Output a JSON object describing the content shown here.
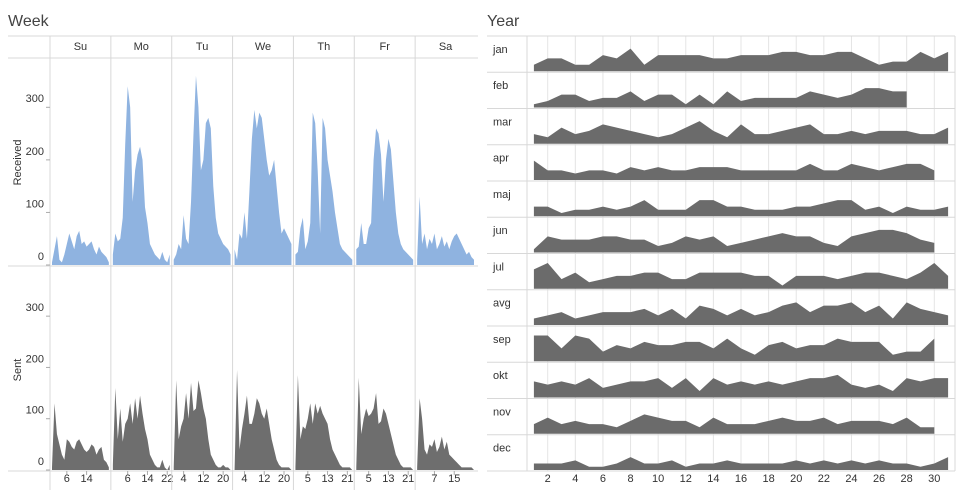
{
  "chart_data": [
    {
      "type": "area",
      "title": "Week",
      "x": [
        0,
        1,
        2,
        3,
        4,
        5,
        6,
        7,
        8,
        9,
        10,
        11,
        12,
        13,
        14,
        15,
        16,
        17,
        18,
        19,
        20,
        21,
        22,
        23
      ],
      "xlim": [
        0,
        23
      ],
      "ylim": [
        0,
        390
      ],
      "yticks": [
        0,
        100,
        200,
        300
      ],
      "columns": [
        "Su",
        "Mo",
        "Tu",
        "We",
        "Th",
        "Fr",
        "Sa"
      ],
      "column_xticks": [
        [
          6,
          14
        ],
        [
          6,
          14,
          22
        ],
        [
          4,
          12,
          20
        ],
        [
          4,
          12,
          20
        ],
        [
          5,
          13,
          21
        ],
        [
          5,
          13,
          21
        ],
        [
          7,
          15
        ]
      ],
      "series": [
        {
          "name": "Received",
          "color": "#8fb3e0",
          "values": [
            [
              5,
              30,
              55,
              10,
              5,
              20,
              40,
              60,
              45,
              30,
              55,
              65,
              40,
              45,
              35,
              40,
              45,
              30,
              20,
              35,
              25,
              20,
              15,
              5
            ],
            [
              20,
              60,
              45,
              50,
              90,
              230,
              340,
              300,
              120,
              180,
              210,
              225,
              200,
              110,
              80,
              40,
              30,
              20,
              15,
              10,
              25,
              10,
              5,
              20
            ],
            [
              10,
              20,
              40,
              30,
              95,
              50,
              40,
              120,
              250,
              360,
              300,
              180,
              200,
              270,
              280,
              260,
              150,
              90,
              60,
              50,
              40,
              35,
              30,
              20
            ],
            [
              30,
              10,
              60,
              50,
              100,
              50,
              140,
              240,
              295,
              260,
              290,
              280,
              240,
              200,
              170,
              180,
              200,
              150,
              100,
              60,
              70,
              60,
              50,
              40
            ],
            [
              20,
              25,
              70,
              90,
              30,
              45,
              80,
              290,
              270,
              180,
              60,
              280,
              260,
              200,
              170,
              140,
              100,
              70,
              40,
              30,
              25,
              20,
              15,
              10
            ],
            [
              30,
              35,
              80,
              40,
              40,
              70,
              80,
              200,
              260,
              250,
              210,
              120,
              200,
              240,
              220,
              160,
              100,
              60,
              40,
              30,
              25,
              20,
              15,
              10
            ],
            [
              10,
              130,
              40,
              60,
              30,
              50,
              40,
              60,
              30,
              40,
              55,
              35,
              45,
              30,
              45,
              55,
              60,
              50,
              40,
              30,
              20,
              25,
              15,
              10
            ]
          ]
        },
        {
          "name": "Sent",
          "color": "#6e6e6e",
          "values": [
            [
              5,
              130,
              70,
              50,
              30,
              20,
              60,
              55,
              45,
              40,
              55,
              60,
              50,
              40,
              35,
              40,
              50,
              45,
              30,
              40,
              45,
              20,
              15,
              5
            ],
            [
              10,
              160,
              60,
              120,
              55,
              90,
              100,
              130,
              90,
              140,
              100,
              145,
              110,
              80,
              60,
              30,
              20,
              10,
              5,
              5,
              20,
              5,
              0,
              10
            ],
            [
              5,
              175,
              60,
              85,
              100,
              150,
              100,
              170,
              115,
              120,
              175,
              150,
              120,
              100,
              60,
              30,
              20,
              10,
              5,
              5,
              10,
              5,
              5,
              0
            ],
            [
              0,
              195,
              40,
              80,
              110,
              145,
              90,
              90,
              110,
              140,
              130,
              110,
              100,
              120,
              90,
              60,
              40,
              20,
              10,
              5,
              5,
              5,
              5,
              0
            ],
            [
              5,
              185,
              60,
              85,
              80,
              100,
              130,
              90,
              130,
              110,
              125,
              110,
              100,
              90,
              60,
              40,
              30,
              20,
              10,
              5,
              5,
              5,
              5,
              0
            ],
            [
              5,
              180,
              70,
              100,
              120,
              105,
              110,
              120,
              150,
              90,
              95,
              120,
              110,
              90,
              70,
              50,
              30,
              20,
              10,
              5,
              5,
              5,
              5,
              0
            ],
            [
              5,
              140,
              100,
              40,
              30,
              50,
              45,
              60,
              35,
              45,
              65,
              40,
              55,
              30,
              25,
              20,
              15,
              10,
              5,
              5,
              5,
              5,
              5,
              0
            ]
          ]
        }
      ]
    },
    {
      "type": "area",
      "title": "Year",
      "x": [
        1,
        2,
        3,
        4,
        5,
        6,
        7,
        8,
        9,
        10,
        11,
        12,
        13,
        14,
        15,
        16,
        17,
        18,
        19,
        20,
        21,
        22,
        23,
        24,
        25,
        26,
        27,
        28,
        29,
        30,
        31
      ],
      "xlim": [
        0.5,
        31.5
      ],
      "ylim": [
        0,
        10
      ],
      "xticks": [
        2,
        4,
        6,
        8,
        10,
        12,
        14,
        16,
        18,
        20,
        22,
        24,
        26,
        28,
        30
      ],
      "color": "#6b6b6b",
      "series": [
        {
          "name": "jan",
          "values": [
            2,
            4,
            4,
            2,
            2,
            5,
            4,
            7,
            2,
            5,
            5,
            5,
            5,
            4,
            4,
            5,
            5,
            5,
            6,
            6,
            5,
            5,
            6,
            6,
            4,
            2,
            3,
            3,
            6,
            4,
            6
          ]
        },
        {
          "name": "feb",
          "values": [
            1,
            2,
            4,
            4,
            2,
            3,
            3,
            5,
            2,
            4,
            4,
            1,
            4,
            1,
            5,
            2,
            3,
            3,
            3,
            3,
            5,
            4,
            3,
            4,
            6,
            6,
            5,
            5,
            null,
            null,
            null
          ]
        },
        {
          "name": "mar",
          "values": [
            3,
            2,
            5,
            3,
            4,
            6,
            5,
            4,
            3,
            2,
            3,
            5,
            7,
            4,
            2,
            6,
            3,
            3,
            4,
            5,
            6,
            3,
            3,
            4,
            3,
            4,
            4,
            4,
            3,
            3,
            5
          ]
        },
        {
          "name": "apr",
          "values": [
            6,
            3,
            3,
            2,
            3,
            3,
            2,
            4,
            3,
            4,
            3,
            3,
            4,
            4,
            4,
            3,
            3,
            3,
            3,
            3,
            5,
            3,
            3,
            5,
            4,
            3,
            4,
            5,
            5,
            3,
            null
          ]
        },
        {
          "name": "maj",
          "values": [
            3,
            3,
            1,
            2,
            2,
            3,
            2,
            3,
            5,
            2,
            2,
            2,
            5,
            5,
            3,
            3,
            2,
            2,
            2,
            3,
            3,
            4,
            5,
            5,
            2,
            3,
            1,
            3,
            2,
            2,
            3
          ]
        },
        {
          "name": "jun",
          "values": [
            1,
            5,
            4,
            4,
            4,
            5,
            5,
            4,
            4,
            2,
            3,
            5,
            4,
            5,
            2,
            3,
            4,
            5,
            6,
            5,
            5,
            3,
            2,
            5,
            6,
            7,
            7,
            6,
            4,
            3,
            null
          ]
        },
        {
          "name": "jul",
          "values": [
            6,
            8,
            3,
            5,
            2,
            3,
            4,
            4,
            5,
            5,
            3,
            3,
            5,
            5,
            5,
            5,
            4,
            4,
            1,
            4,
            4,
            4,
            3,
            4,
            5,
            5,
            4,
            3,
            5,
            8,
            4
          ]
        },
        {
          "name": "avg",
          "values": [
            2,
            3,
            4,
            2,
            3,
            4,
            4,
            4,
            5,
            3,
            5,
            2,
            6,
            5,
            3,
            5,
            3,
            4,
            6,
            7,
            4,
            6,
            6,
            7,
            4,
            6,
            2,
            7,
            5,
            4,
            3
          ]
        },
        {
          "name": "sep",
          "values": [
            8,
            8,
            4,
            8,
            7,
            3,
            5,
            4,
            6,
            5,
            5,
            6,
            6,
            4,
            7,
            4,
            2,
            5,
            6,
            4,
            5,
            5,
            7,
            6,
            6,
            6,
            2,
            3,
            3,
            7,
            null
          ]
        },
        {
          "name": "okt",
          "values": [
            5,
            4,
            5,
            4,
            6,
            3,
            4,
            5,
            5,
            6,
            3,
            6,
            2,
            6,
            4,
            5,
            4,
            5,
            4,
            5,
            6,
            6,
            7,
            4,
            3,
            4,
            2,
            6,
            5,
            6,
            6
          ]
        },
        {
          "name": "nov",
          "values": [
            3,
            5,
            3,
            4,
            3,
            3,
            2,
            4,
            6,
            5,
            4,
            4,
            2,
            5,
            3,
            3,
            3,
            4,
            5,
            4,
            4,
            5,
            3,
            4,
            4,
            4,
            3,
            5,
            2,
            2,
            null
          ]
        },
        {
          "name": "dec",
          "values": [
            2,
            2,
            2,
            3,
            1,
            1,
            2,
            4,
            2,
            2,
            3,
            1,
            2,
            2,
            3,
            2,
            2,
            2,
            2,
            3,
            2,
            3,
            2,
            3,
            2,
            3,
            2,
            2,
            1,
            2,
            4
          ]
        }
      ]
    }
  ]
}
